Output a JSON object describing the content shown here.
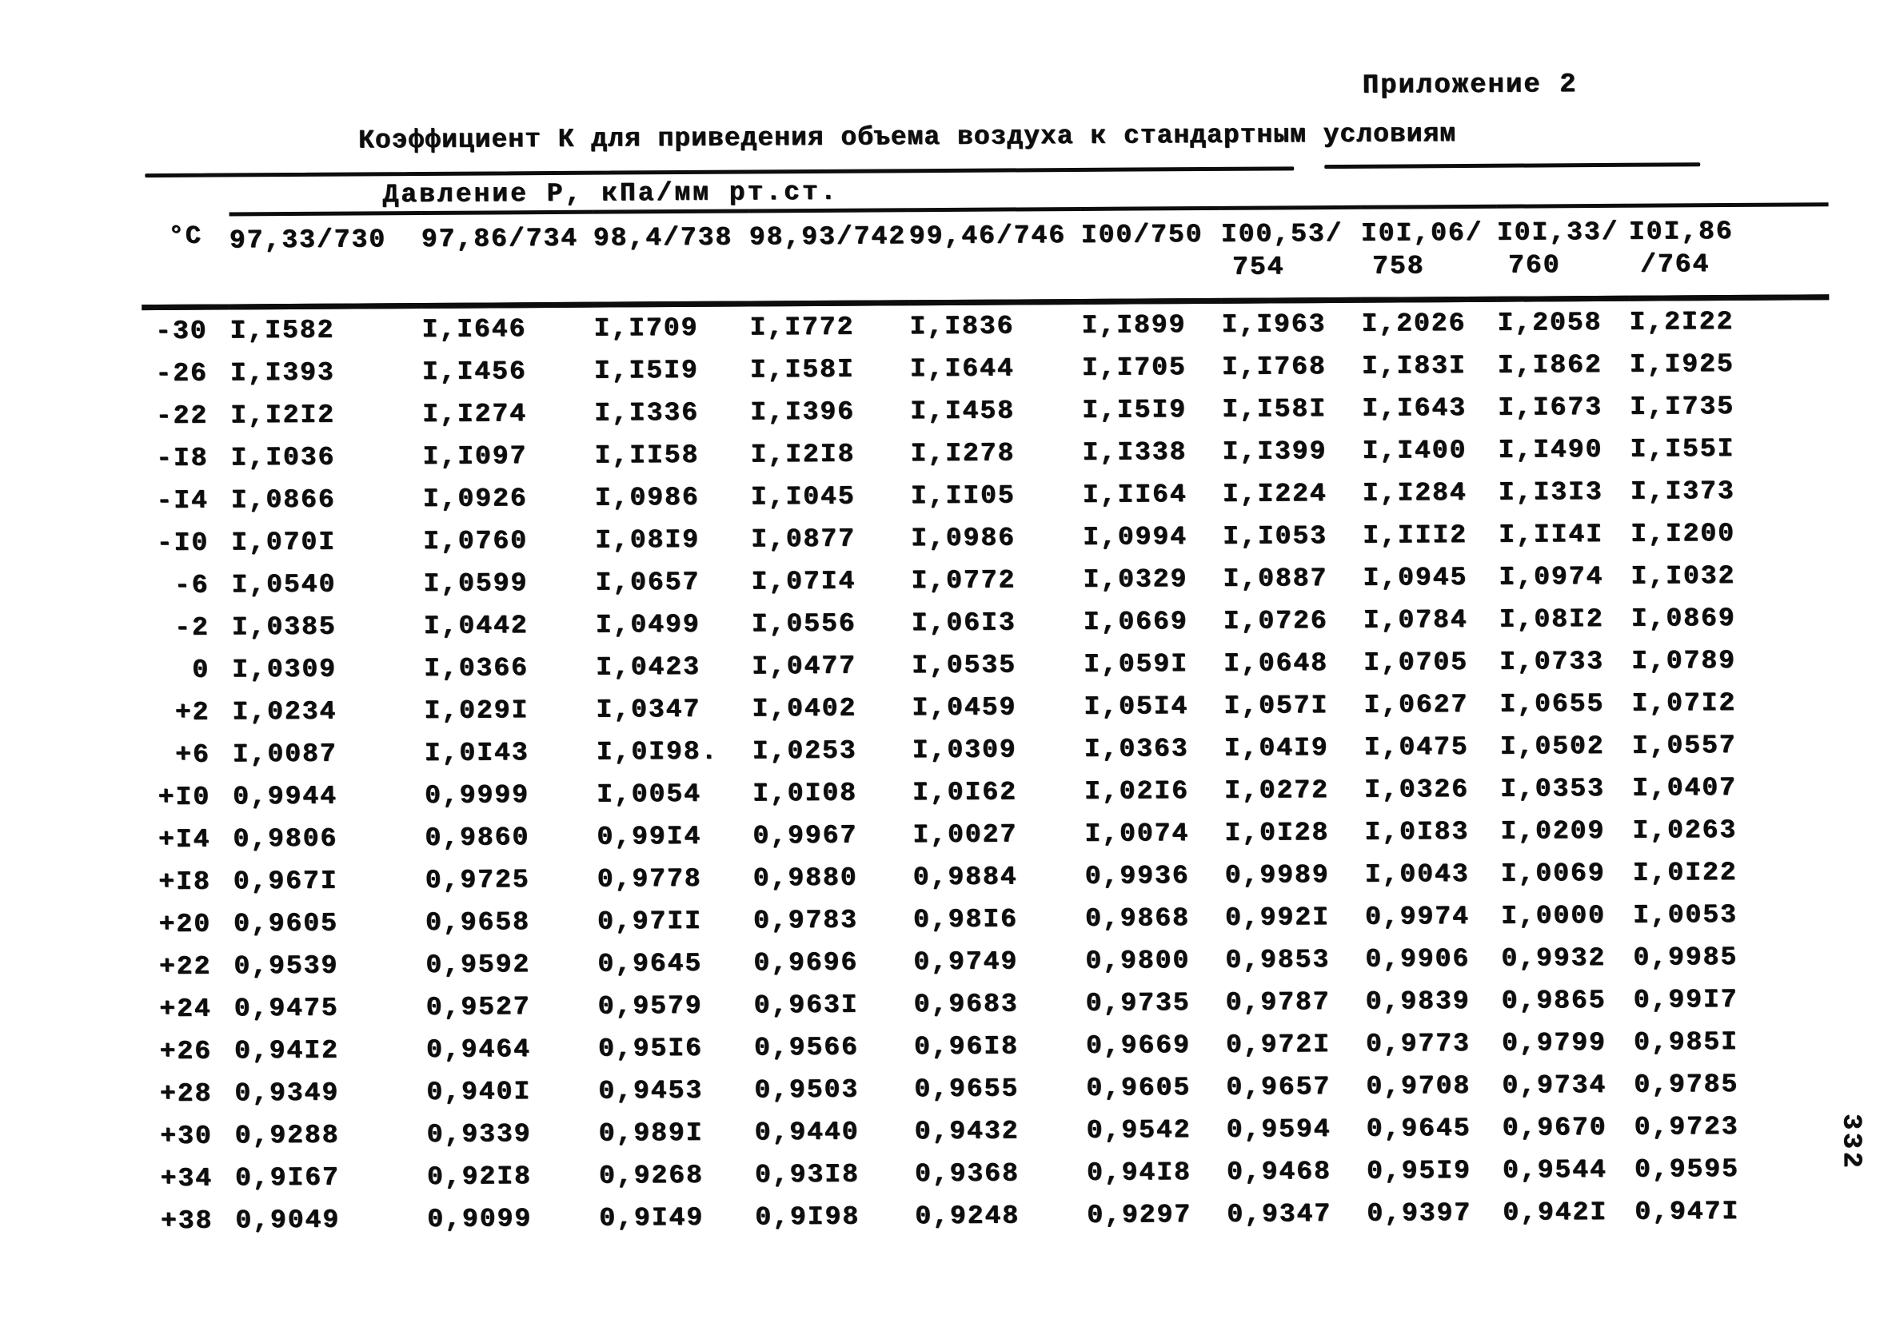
{
  "page": {
    "appendix": "Приложение 2",
    "title": "Коэффициент К для приведения объема воздуха к стандартным условиям",
    "pressure_header": "Давление Р, кПа/мм рт.ст.",
    "page_number": "332"
  },
  "table": {
    "temp_col_header": "°С",
    "columns": [
      {
        "line1": "97,33/730",
        "line2": ""
      },
      {
        "line1": "97,86/734",
        "line2": ""
      },
      {
        "line1": "98,4/738",
        "line2": ""
      },
      {
        "line1": "98,93/742",
        "line2": ""
      },
      {
        "line1": "99,46/746",
        "line2": ""
      },
      {
        "line1": "I00/750",
        "line2": ""
      },
      {
        "line1": "I00,53/",
        "line2": "754"
      },
      {
        "line1": "I0I,06/",
        "line2": "758"
      },
      {
        "line1": "I0I,33/",
        "line2": "760"
      },
      {
        "line1": "I0I,86",
        "line2": "/764"
      }
    ],
    "rows": [
      {
        "temp": "-30",
        "values": [
          "I,I582",
          "I,I646",
          "I,I709",
          "I,I772",
          "I,I836",
          "I,I899",
          "I,I963",
          "I,2026",
          "I,2058",
          "I,2I22"
        ]
      },
      {
        "temp": "-26",
        "values": [
          "I,I393",
          "I,I456",
          "I,I5I9",
          "I,I58I",
          "I,I644",
          "I,I705",
          "I,I768",
          "I,I83I",
          "I,I862",
          "I,I925"
        ]
      },
      {
        "temp": "-22",
        "values": [
          "I,I2I2",
          "I,I274",
          "I,I336",
          "I,I396",
          "I,I458",
          "I,I5I9",
          "I,I58I",
          "I,I643",
          "I,I673",
          "I,I735"
        ]
      },
      {
        "temp": "-I8",
        "values": [
          "I,I036",
          "I,I097",
          "I,II58",
          "I,I2I8",
          "I,I278",
          "I,I338",
          "I,I399",
          "I,I400",
          "I,I490",
          "I,I55I"
        ]
      },
      {
        "temp": "-I4",
        "values": [
          "I,0866",
          "I,0926",
          "I,0986",
          "I,I045",
          "I,II05",
          "I,II64",
          "I,I224",
          "I,I284",
          "I,I3I3",
          "I,I373"
        ]
      },
      {
        "temp": "-I0",
        "values": [
          "I,070I",
          "I,0760",
          "I,08I9",
          "I,0877",
          "I,0986",
          "I,0994",
          "I,I053",
          "I,III2",
          "I,II4I",
          "I,I200"
        ]
      },
      {
        "temp": "-6",
        "values": [
          "I,0540",
          "I,0599",
          "I,0657",
          "I,07I4",
          "I,0772",
          "I,0329",
          "I,0887",
          "I,0945",
          "I,0974",
          "I,I032"
        ]
      },
      {
        "temp": "-2",
        "values": [
          "I,0385",
          "I,0442",
          "I,0499",
          "I,0556",
          "I,06I3",
          "I,0669",
          "I,0726",
          "I,0784",
          "I,08I2",
          "I,0869"
        ]
      },
      {
        "temp": "0",
        "values": [
          "I,0309",
          "I,0366",
          "I,0423",
          "I,0477",
          "I,0535",
          "I,059I",
          "I,0648",
          "I,0705",
          "I,0733",
          "I,0789"
        ]
      },
      {
        "temp": "+2",
        "values": [
          "I,0234",
          "I,029I",
          "I,0347",
          "I,0402",
          "I,0459",
          "I,05I4",
          "I,057I",
          "I,0627",
          "I,0655",
          "I,07I2"
        ]
      },
      {
        "temp": "+6",
        "values": [
          "I,0087",
          "I,0I43",
          "I,0I98.",
          "I,0253",
          "I,0309",
          "I,0363",
          "I,04I9",
          "I,0475",
          "I,0502",
          "I,0557"
        ]
      },
      {
        "temp": "+I0",
        "values": [
          "0,9944",
          "0,9999",
          "I,0054",
          "I,0I08",
          "I,0I62",
          "I,02I6",
          "I,0272",
          "I,0326",
          "I,0353",
          "I,0407"
        ]
      },
      {
        "temp": "+I4",
        "values": [
          "0,9806",
          "0,9860",
          "0,99I4",
          "0,9967",
          "I,0027",
          "I,0074",
          "I,0I28",
          "I,0I83",
          "I,0209",
          "I,0263"
        ]
      },
      {
        "temp": "+I8",
        "values": [
          "0,967I",
          "0,9725",
          "0,9778",
          "0,9880",
          "0,9884",
          "0,9936",
          "0,9989",
          "I,0043",
          "I,0069",
          "I,0I22"
        ]
      },
      {
        "temp": "+20",
        "values": [
          "0,9605",
          "0,9658",
          "0,97II",
          "0,9783",
          "0,98I6",
          "0,9868",
          "0,992I",
          "0,9974",
          "I,0000",
          "I,0053"
        ]
      },
      {
        "temp": "+22",
        "values": [
          "0,9539",
          "0,9592",
          "0,9645",
          "0,9696",
          "0,9749",
          "0,9800",
          "0,9853",
          "0,9906",
          "0,9932",
          "0,9985"
        ]
      },
      {
        "temp": "+24",
        "values": [
          "0,9475",
          "0,9527",
          "0,9579",
          "0,963I",
          "0,9683",
          "0,9735",
          "0,9787",
          "0,9839",
          "0,9865",
          "0,99I7"
        ]
      },
      {
        "temp": "+26",
        "values": [
          "0,94I2",
          "0,9464",
          "0,95I6",
          "0,9566",
          "0,96I8",
          "0,9669",
          "0,972I",
          "0,9773",
          "0,9799",
          "0,985I"
        ]
      },
      {
        "temp": "+28",
        "values": [
          "0,9349",
          "0,940I",
          "0,9453",
          "0,9503",
          "0,9655",
          "0,9605",
          "0,9657",
          "0,9708",
          "0,9734",
          "0,9785"
        ]
      },
      {
        "temp": "+30",
        "values": [
          "0,9288",
          "0,9339",
          "0,989I",
          "0,9440",
          "0,9432",
          "0,9542",
          "0,9594",
          "0,9645",
          "0,9670",
          "0,9723"
        ]
      },
      {
        "temp": "+34",
        "values": [
          "0,9I67",
          "0,92I8",
          "0,9268",
          "0,93I8",
          "0,9368",
          "0,94I8",
          "0,9468",
          "0,95I9",
          "0,9544",
          "0,9595"
        ]
      },
      {
        "temp": "+38",
        "values": [
          "0,9049",
          "0,9099",
          "0,9I49",
          "0,9I98",
          "0,9248",
          "0,9297",
          "0,9347",
          "0,9397",
          "0,942I",
          "0,947I"
        ]
      }
    ]
  }
}
